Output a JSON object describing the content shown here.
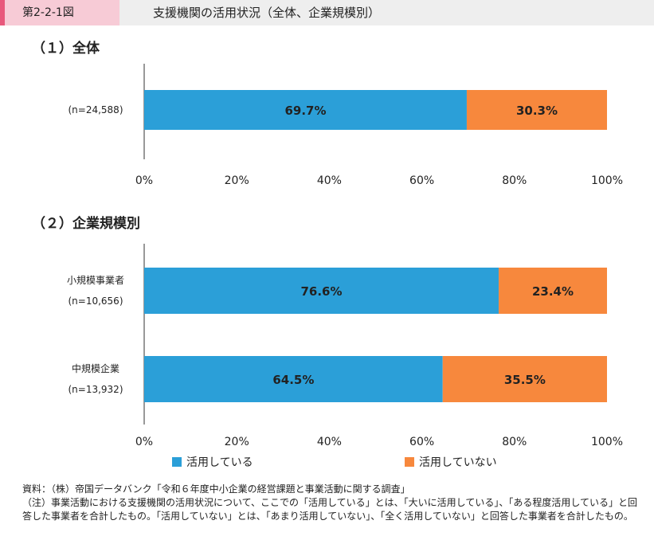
{
  "header": {
    "figure_label": "第2-2-1図",
    "title": "支援機関の活用状況（全体、企業規模別）"
  },
  "sections": [
    {
      "title": "（１）全体"
    },
    {
      "title": "（２）企業規模別"
    }
  ],
  "colors": {
    "used": "#2b9fd8",
    "not_used": "#f7883d"
  },
  "chart_data": [
    {
      "type": "bar",
      "orientation": "horizontal",
      "stacked": true,
      "title": "（１）全体",
      "categories": [
        [
          "(n=24,588)"
        ]
      ],
      "series": [
        {
          "name": "活用している",
          "values": [
            69.7
          ],
          "labels": [
            "69.7%"
          ]
        },
        {
          "name": "活用していない",
          "values": [
            30.3
          ],
          "labels": [
            "30.3%"
          ]
        }
      ],
      "xlim": [
        0,
        100
      ],
      "x_ticks": [
        "0%",
        "20%",
        "40%",
        "60%",
        "80%",
        "100%"
      ]
    },
    {
      "type": "bar",
      "orientation": "horizontal",
      "stacked": true,
      "title": "（２）企業規模別",
      "categories": [
        [
          "小規模事業者",
          "(n=10,656)"
        ],
        [
          "中規模企業",
          "(n=13,932)"
        ]
      ],
      "series": [
        {
          "name": "活用している",
          "values": [
            76.6,
            64.5
          ],
          "labels": [
            "76.6%",
            "64.5%"
          ]
        },
        {
          "name": "活用していない",
          "values": [
            23.4,
            35.5
          ],
          "labels": [
            "23.4%",
            "35.5%"
          ]
        }
      ],
      "xlim": [
        0,
        100
      ],
      "x_ticks": [
        "0%",
        "20%",
        "40%",
        "60%",
        "80%",
        "100%"
      ],
      "legend": "bottom"
    }
  ],
  "legend": [
    {
      "label": "活用している"
    },
    {
      "label": "活用していない"
    }
  ],
  "notes": [
    "資料：（株）帝国データバンク「令和６年度中小企業の経営課題と事業活動に関する調査」",
    "（注）事業活動における支援機関の活用状況について、ここでの「活用している」とは、「大いに活用している」、「ある程度活用している」と回答した事業者を合計したもの。「活用していない」とは、「あまり活用していない」、「全く活用していない」と回答した事業者を合計したもの。"
  ]
}
